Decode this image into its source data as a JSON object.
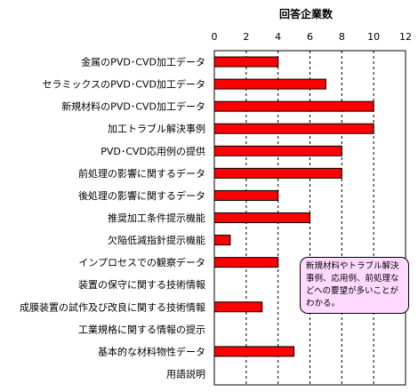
{
  "chart_data": {
    "type": "bar",
    "orientation": "horizontal",
    "title": "回答企業数",
    "xlim": [
      0,
      12
    ],
    "xticks": [
      0,
      2,
      4,
      6,
      8,
      10,
      12
    ],
    "grid": "vertical dashed",
    "bar_color": "#ff0000",
    "categories": [
      "金属のPVD･CVD加工データ",
      "セラミックスのPVD･CVD加工データ",
      "新規材料のPVD･CVD加工データ",
      "加工トラブル解決事例",
      "PVD･CVD応用例の提供",
      "前処理の影響に関するデータ",
      "後処理の影響に関するデータ",
      "推奨加工条件提示機能",
      "欠陥低減指針提示機能",
      "インプロセスでの観察データ",
      "装置の保守に関する技術情報",
      "成膜装置の試作及び改良に関する技術情報",
      "工業規格に関する情報の提示",
      "基本的な材料物性データ",
      "用語説明"
    ],
    "values": [
      4,
      7,
      10,
      10,
      8,
      8,
      4,
      6,
      1,
      4,
      0,
      3,
      0,
      5,
      0
    ]
  },
  "annotation": {
    "text": "新規材料やトラブル解決事例、応用例、前処理などへの要望が多いことがわかる。",
    "color": "#ffd9ff"
  }
}
